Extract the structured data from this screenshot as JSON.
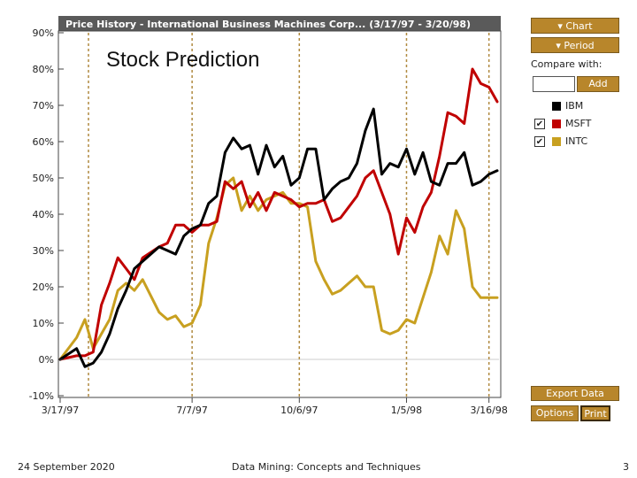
{
  "slide": {
    "title": "Stock Prediction",
    "footer_date": "24 September 2020",
    "footer_course": "Data Mining: Concepts and Techniques",
    "page_number": "3"
  },
  "panel": {
    "chart_button": "Chart",
    "period_button": "Period",
    "compare_label": "Compare with:",
    "compare_value": "",
    "add_button": "Add",
    "export_button": "Export Data",
    "options_button": "Options",
    "print_button": "Print",
    "dropdown_icon": "triangle-down-icon"
  },
  "legend": [
    {
      "label": "IBM",
      "color": "#000000",
      "checkbox": false,
      "checked": false
    },
    {
      "label": "MSFT",
      "color": "#c00000",
      "checkbox": true,
      "checked": true
    },
    {
      "label": "INTC",
      "color": "#c8a020",
      "checkbox": true,
      "checked": true
    }
  ],
  "chart_data": {
    "type": "line",
    "title": "Price History - International Business Machines Corp... (3/17/97 - 3/20/98)",
    "xlabel": "",
    "ylabel": "",
    "ylim": [
      -10,
      90
    ],
    "yticks": [
      "90%",
      "80%",
      "70%",
      "60%",
      "50%",
      "40%",
      "30%",
      "20%",
      "10%",
      "0%",
      "-10%"
    ],
    "ytick_values": [
      90,
      80,
      70,
      60,
      50,
      40,
      30,
      20,
      10,
      0,
      -10
    ],
    "xticks": [
      "3/17/97",
      "7/7/97",
      "10/6/97",
      "1/5/98",
      "3/16/98"
    ],
    "xtick_values": [
      0,
      16,
      29,
      42,
      52
    ],
    "xlim": [
      0,
      53
    ],
    "grid": "vertical dashed",
    "series": [
      {
        "name": "IBM",
        "color": "#000000",
        "x": [
          0,
          2,
          3,
          4,
          5,
          6,
          7,
          8,
          9,
          10,
          12,
          13,
          14,
          15,
          16,
          17,
          18,
          19,
          20,
          21,
          22,
          23,
          24,
          25,
          26,
          27,
          28,
          29,
          30,
          31,
          32,
          33,
          34,
          35,
          36,
          37,
          38,
          39,
          40,
          41,
          42,
          43,
          44,
          45,
          46,
          47,
          48,
          49,
          50,
          51,
          52,
          53
        ],
        "values": [
          0,
          3,
          -2,
          -1,
          2,
          7,
          14,
          19,
          25,
          27,
          31,
          30,
          29,
          34,
          36,
          37,
          43,
          45,
          57,
          61,
          58,
          59,
          51,
          59,
          53,
          56,
          48,
          50,
          58,
          58,
          44,
          47,
          49,
          50,
          54,
          63,
          69,
          51,
          54,
          53,
          58,
          51,
          57,
          49,
          48,
          54,
          54,
          57,
          48,
          49,
          51,
          52
        ]
      },
      {
        "name": "MSFT",
        "color": "#c00000",
        "x": [
          0,
          2,
          3,
          4,
          5,
          6,
          7,
          8,
          9,
          10,
          12,
          13,
          14,
          15,
          16,
          17,
          18,
          19,
          20,
          21,
          22,
          23,
          24,
          25,
          26,
          27,
          28,
          29,
          30,
          31,
          32,
          33,
          34,
          35,
          36,
          37,
          38,
          39,
          40,
          41,
          42,
          43,
          44,
          45,
          46,
          47,
          48,
          49,
          50,
          51,
          52,
          53
        ],
        "values": [
          0,
          1,
          1,
          2,
          15,
          21,
          28,
          25,
          22,
          28,
          31,
          32,
          37,
          37,
          35,
          37,
          37,
          38,
          49,
          47,
          49,
          42,
          46,
          41,
          46,
          45,
          44,
          42,
          43,
          43,
          44,
          38,
          39,
          42,
          45,
          50,
          52,
          46,
          40,
          29,
          39,
          35,
          42,
          46,
          56,
          68,
          67,
          65,
          80,
          76,
          75,
          71
        ]
      },
      {
        "name": "INTC",
        "color": "#c8a020",
        "x": [
          0,
          2,
          3,
          4,
          5,
          6,
          7,
          8,
          9,
          10,
          12,
          13,
          14,
          15,
          16,
          17,
          18,
          19,
          20,
          21,
          22,
          23,
          24,
          25,
          26,
          27,
          28,
          29,
          30,
          31,
          32,
          33,
          34,
          35,
          36,
          37,
          38,
          39,
          40,
          41,
          42,
          43,
          44,
          45,
          46,
          47,
          48,
          49,
          50,
          51,
          52,
          53
        ],
        "values": [
          0,
          6,
          11,
          3,
          7,
          11,
          19,
          21,
          19,
          22,
          13,
          11,
          12,
          9,
          10,
          15,
          32,
          39,
          48,
          50,
          41,
          45,
          41,
          44,
          45,
          46,
          43,
          43,
          42,
          27,
          22,
          18,
          19,
          21,
          23,
          20,
          20,
          8,
          7,
          8,
          11,
          10,
          17,
          24,
          34,
          29,
          41,
          36,
          20,
          17,
          17,
          17
        ]
      }
    ]
  }
}
